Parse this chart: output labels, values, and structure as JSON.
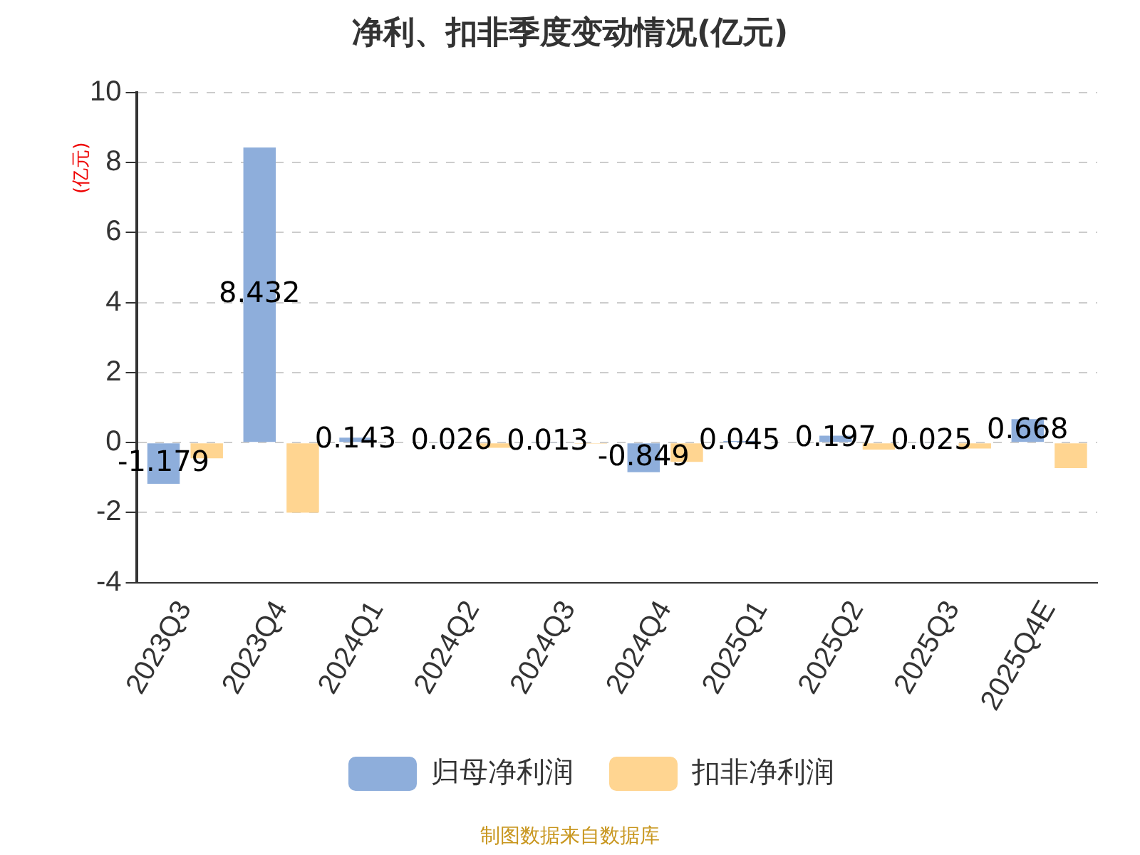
{
  "chart_data": {
    "type": "bar",
    "title": "净利、扣非季度变动情况(亿元)",
    "ylabel": "(亿元)",
    "categories": [
      "2023Q3",
      "2023Q4",
      "2024Q1",
      "2024Q2",
      "2024Q3",
      "2024Q4",
      "2025Q1",
      "2025Q2",
      "2025Q3",
      "2025Q4E"
    ],
    "series": [
      {
        "name": "归母净利润",
        "color": "#8eaedb",
        "values": [
          -1.179,
          8.432,
          0.143,
          0.026,
          0.013,
          -0.849,
          0.045,
          0.197,
          0.025,
          0.668
        ],
        "value_labels": [
          "-1.179",
          "8.432",
          "0.143",
          "0.026",
          "0.013",
          "-0.849",
          "0.045",
          "0.197",
          "0.025",
          "0.668"
        ]
      },
      {
        "name": "扣非净利润",
        "color": "#ffd591",
        "values": [
          -0.45,
          -2.0,
          0.02,
          -0.15,
          -0.03,
          -0.55,
          0.02,
          -0.2,
          -0.17,
          -0.73
        ]
      }
    ],
    "ylim": [
      -4,
      10
    ],
    "yticks": [
      -4,
      -2,
      0,
      2,
      4,
      6,
      8,
      10
    ],
    "grid": "y",
    "legend": "bottom",
    "annotations": [
      "制图数据来自数据库"
    ]
  }
}
